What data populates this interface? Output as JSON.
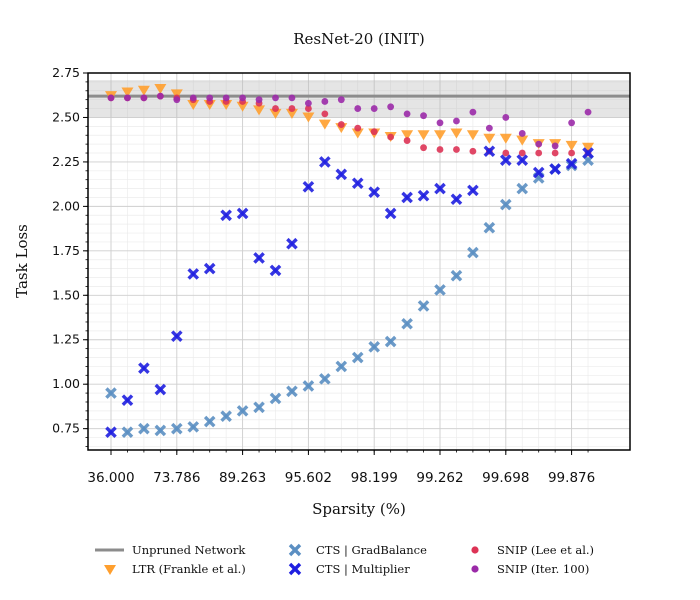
{
  "chart_data": {
    "type": "scatter",
    "title": "ResNet-20 (INIT)",
    "xlabel": "Sparsity (%)",
    "ylabel": "Task Loss",
    "x_scale": "log of the remaining weight fraction (100 - sparsity); one tick per compression level",
    "x_tick_labels": [
      "36.000",
      "73.786",
      "89.263",
      "95.602",
      "98.199",
      "99.262",
      "99.698",
      "99.876"
    ],
    "ylim": [
      0.63,
      2.75
    ],
    "y_ticks": [
      0.75,
      1.0,
      1.25,
      1.5,
      1.75,
      2.0,
      2.25,
      2.5,
      2.75
    ],
    "y_tick_labels": [
      "0.75",
      "1.00",
      "1.25",
      "1.50",
      "1.75",
      "2.00",
      "2.25",
      "2.50",
      "2.75"
    ],
    "grid": true,
    "legend_position": "below plot",
    "baseline": {
      "name": "Unpruned Network",
      "value": 2.62,
      "band": [
        2.5,
        2.71
      ],
      "color": "#8c8c8c"
    },
    "series": [
      {
        "name": "LTR (Frankle et al.)",
        "marker": "triangle-down",
        "color": "#ff9f2e",
        "x_index": [
          0,
          1,
          2,
          3,
          4,
          5,
          6,
          7,
          8,
          9,
          10,
          11,
          12,
          13,
          14,
          15,
          16,
          17,
          18,
          19,
          20,
          21,
          22,
          23,
          24,
          25,
          26,
          27,
          28,
          29
        ],
        "y": [
          2.62,
          2.64,
          2.65,
          2.66,
          2.63,
          2.57,
          2.57,
          2.57,
          2.56,
          2.54,
          2.52,
          2.52,
          2.5,
          2.46,
          2.44,
          2.41,
          2.41,
          2.39,
          2.4,
          2.4,
          2.4,
          2.41,
          2.4,
          2.38,
          2.38,
          2.37,
          2.35,
          2.35,
          2.34,
          2.33
        ]
      },
      {
        "name": "SNIP (Lee et al.)",
        "marker": "circle",
        "color": "#dd3355",
        "x_index": [
          0,
          1,
          2,
          3,
          4,
          5,
          6,
          7,
          8,
          9,
          10,
          11,
          12,
          13,
          14,
          15,
          16,
          17,
          18,
          19,
          20,
          21,
          22,
          23,
          24,
          25,
          26,
          27,
          28,
          29
        ],
        "y": [
          2.61,
          2.61,
          2.61,
          2.62,
          2.61,
          2.6,
          2.59,
          2.59,
          2.59,
          2.58,
          2.55,
          2.55,
          2.55,
          2.52,
          2.46,
          2.44,
          2.42,
          2.39,
          2.37,
          2.33,
          2.32,
          2.32,
          2.31,
          2.31,
          2.3,
          2.3,
          2.3,
          2.3,
          2.3,
          2.3
        ]
      },
      {
        "name": "SNIP (Iter. 100)",
        "marker": "circle",
        "color": "#9b2aa8",
        "x_index": [
          0,
          1,
          2,
          3,
          4,
          5,
          6,
          7,
          8,
          9,
          10,
          11,
          12,
          13,
          14,
          15,
          16,
          17,
          18,
          19,
          20,
          21,
          22,
          23,
          24,
          25,
          26,
          27,
          28,
          29
        ],
        "y": [
          2.61,
          2.61,
          2.61,
          2.62,
          2.6,
          2.61,
          2.61,
          2.61,
          2.61,
          2.6,
          2.61,
          2.61,
          2.58,
          2.59,
          2.6,
          2.55,
          2.55,
          2.56,
          2.52,
          2.51,
          2.47,
          2.48,
          2.53,
          2.44,
          2.5,
          2.41,
          2.35,
          2.34,
          2.47,
          2.53
        ]
      },
      {
        "name": "CTS | GradBalance",
        "marker": "x",
        "color": "#5b8fc2",
        "x_index": [
          0,
          1,
          2,
          3,
          4,
          5,
          6,
          7,
          8,
          9,
          10,
          11,
          12,
          13,
          14,
          15,
          16,
          17,
          18,
          19,
          20,
          21,
          22,
          23,
          24,
          25,
          26,
          27,
          28,
          29
        ],
        "y": [
          0.95,
          0.73,
          0.75,
          0.74,
          0.75,
          0.76,
          0.79,
          0.82,
          0.85,
          0.87,
          0.92,
          0.96,
          0.99,
          1.03,
          1.1,
          1.15,
          1.21,
          1.24,
          1.34,
          1.44,
          1.53,
          1.61,
          1.74,
          1.88,
          2.01,
          2.1,
          2.16,
          2.21,
          2.23,
          2.26
        ]
      },
      {
        "name": "CTS | Multiplier",
        "marker": "x",
        "color": "#1f1fe0",
        "x_index": [
          0,
          1,
          2,
          3,
          4,
          5,
          6,
          7,
          8,
          9,
          10,
          11,
          12,
          13,
          14,
          15,
          16,
          17,
          18,
          19,
          20,
          21,
          22,
          23,
          24,
          25,
          26,
          27,
          28,
          29
        ],
        "y": [
          0.73,
          0.91,
          1.09,
          0.97,
          1.27,
          1.62,
          1.65,
          1.95,
          1.96,
          1.71,
          1.64,
          1.79,
          2.11,
          2.25,
          2.18,
          2.13,
          2.08,
          1.96,
          2.05,
          2.06,
          2.1,
          2.04,
          2.09,
          2.31,
          2.26,
          2.26,
          2.19,
          2.21,
          2.24,
          2.3
        ]
      }
    ]
  },
  "legend_labels": {
    "baseline": "Unpruned Network",
    "ltr": "LTR (Frankle et al.)",
    "grad": "CTS | GradBalance",
    "mult": "CTS | Multiplier",
    "snip": "SNIP (Lee et al.)",
    "snip_iter": "SNIP (Iter. 100)"
  }
}
